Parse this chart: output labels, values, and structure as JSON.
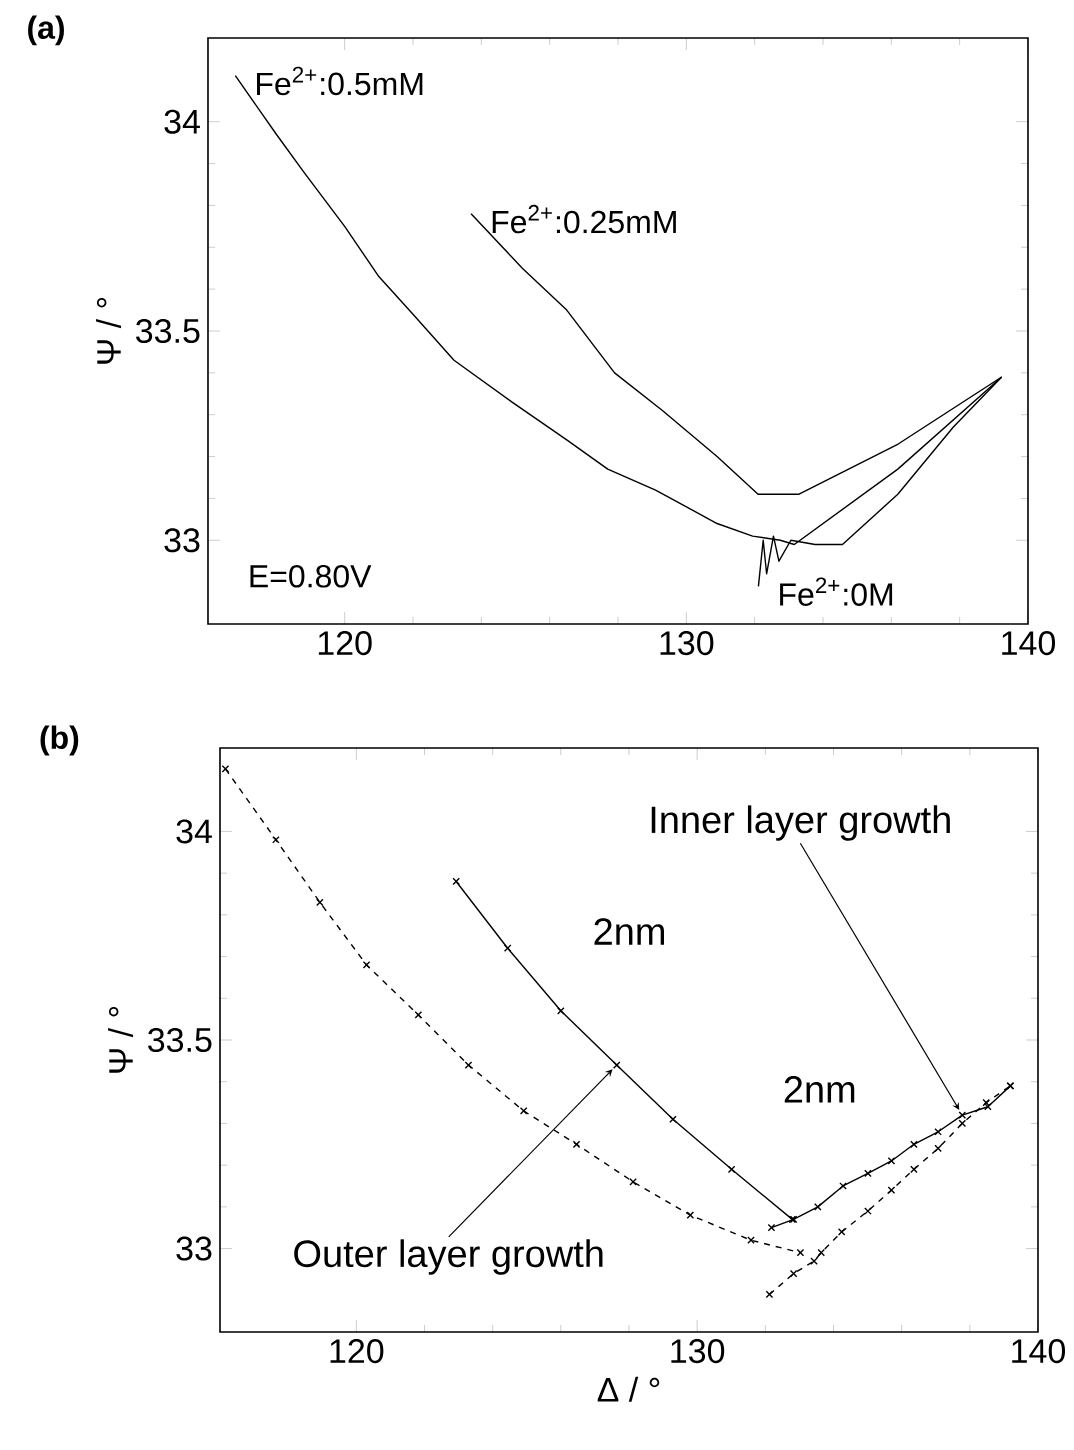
{
  "chart_data": [
    {
      "type": "line",
      "title": "(a)",
      "ylabel": "Ψ / °",
      "xlim": [
        116,
        140
      ],
      "ylim": [
        32.8,
        34.2
      ],
      "xticks": [
        120,
        130,
        140
      ],
      "yticks": [
        33,
        33.5,
        34
      ],
      "annotations": [
        "E=0.80V"
      ],
      "series": [
        {
          "name": "Fe$^{2+}$:0.5mM",
          "color": "#000000",
          "x": [
            116.8,
            118,
            118.8,
            120,
            121,
            122,
            123.2,
            124.9,
            126.5,
            127.7,
            129.1,
            130.9,
            131.94,
            132.75,
            133.16,
            136.19,
            139.23
          ],
          "values": [
            34.11,
            33.97,
            33.88,
            33.75,
            33.63,
            33.54,
            33.43,
            33.33,
            33.24,
            33.17,
            33.12,
            33.04,
            33.01,
            33.0,
            32.99,
            33.17,
            33.39
          ]
        },
        {
          "name": "Fe$^{2+}$:0.25mM",
          "color": "#000000",
          "x": [
            123.7,
            125.2,
            126.5,
            127.9,
            129.3,
            130.9,
            132.1,
            133.3,
            136.2,
            139.23
          ],
          "values": [
            33.78,
            33.65,
            33.55,
            33.4,
            33.31,
            33.2,
            33.11,
            33.11,
            33.23,
            33.39
          ]
        },
        {
          "name": "Fe$^{2+}$:0M",
          "color": "#000000",
          "x": [
            132.11,
            132.25,
            132.35,
            132.55,
            132.71,
            133.06,
            133.77,
            134.57,
            136.19,
            137.81,
            139.23
          ],
          "values": [
            32.89,
            33.0,
            32.92,
            33.01,
            32.95,
            33.0,
            32.99,
            32.99,
            33.11,
            33.27,
            33.39
          ]
        }
      ]
    },
    {
      "type": "line",
      "title": "(b)",
      "xlabel": "Δ / °",
      "ylabel": "Ψ / °",
      "xlim": [
        116,
        140
      ],
      "ylim": [
        32.8,
        34.2
      ],
      "xticks": [
        120,
        130,
        140
      ],
      "yticks": [
        33,
        33.5,
        34
      ],
      "marker": "cross",
      "annotations": [
        {
          "text": "Inner layer growth",
          "x": 137.78,
          "y": 33.32
        },
        {
          "text": "2nm",
          "x": 125.2,
          "y": 33.65
        },
        {
          "text": "2nm",
          "x": 135.3,
          "y": 33.19
        },
        {
          "text": "Outer layer growth",
          "x": 127.64,
          "y": 33.44
        }
      ],
      "series": [
        {
          "color": "#000000",
          "line_style": "dashed",
          "x": [
            116.16,
            117.64,
            118.93,
            120.3,
            121.82,
            123.29,
            124.91,
            126.46,
            128.12,
            129.8,
            131.58,
            133.03
          ],
          "values": [
            34.15,
            33.98,
            33.83,
            33.68,
            33.56,
            33.44,
            33.33,
            33.25,
            33.16,
            33.08,
            33.02,
            32.99
          ]
        },
        {
          "color": "#000000",
          "line_style": "dashed",
          "x": [
            132.12,
            132.83,
            133.43,
            133.64,
            134.24,
            135.01,
            135.7,
            136.36,
            137.07,
            137.78,
            138.48,
            139.19
          ],
          "values": [
            32.89,
            32.94,
            32.97,
            32.99,
            33.04,
            33.09,
            33.14,
            33.19,
            33.24,
            33.3,
            33.35,
            33.39
          ]
        },
        {
          "color": "#000000",
          "line_style": "solid",
          "x": [
            122.93,
            124.44,
            126.0,
            127.64,
            129.29,
            131.01,
            132.79
          ],
          "values": [
            33.88,
            33.72,
            33.57,
            33.44,
            33.31,
            33.19,
            33.07
          ]
        },
        {
          "color": "#000000",
          "line_style": "solid",
          "x": [
            132.18,
            132.83,
            133.54,
            134.28,
            135.01,
            135.7,
            136.36,
            137.07,
            137.78,
            138.53,
            139.19
          ],
          "values": [
            33.05,
            33.07,
            33.1,
            33.15,
            33.18,
            33.21,
            33.25,
            33.28,
            33.32,
            33.34,
            33.39
          ]
        }
      ]
    }
  ]
}
